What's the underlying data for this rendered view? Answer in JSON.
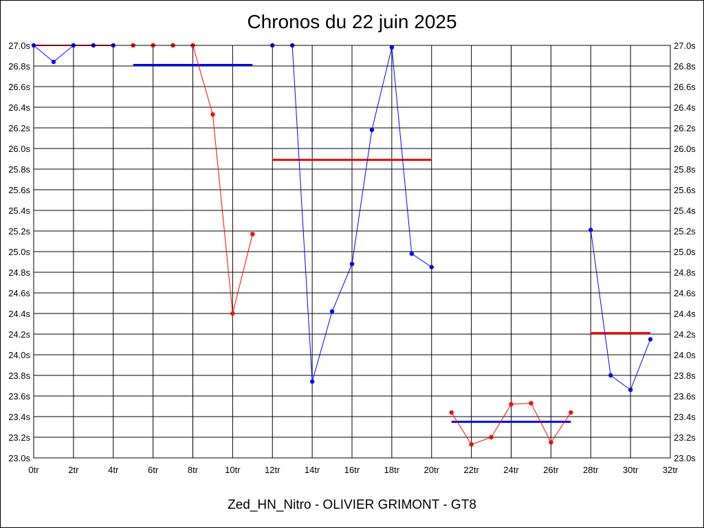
{
  "chart_data": {
    "type": "line",
    "title": "Chronos du 22 juin 2025",
    "subtitle": "Zed_HN_Nitro - OLIVIER GRIMONT - GT8",
    "xlim": [
      0,
      32
    ],
    "ylim": [
      23.0,
      27.0
    ],
    "x_ticks": [
      0,
      2,
      4,
      6,
      8,
      10,
      12,
      14,
      16,
      18,
      20,
      22,
      24,
      26,
      28,
      30,
      32
    ],
    "x_tick_labels": [
      "0tr",
      "2tr",
      "4tr",
      "6tr",
      "8tr",
      "10tr",
      "12tr",
      "14tr",
      "16tr",
      "18tr",
      "20tr",
      "22tr",
      "24tr",
      "26tr",
      "28tr",
      "30tr",
      "32tr"
    ],
    "y_ticks": [
      23.0,
      23.2,
      23.4,
      23.6,
      23.8,
      24.0,
      24.2,
      24.4,
      24.6,
      24.8,
      25.0,
      25.2,
      25.4,
      25.6,
      25.8,
      26.0,
      26.2,
      26.4,
      26.6,
      26.8,
      27.0
    ],
    "y_tick_labels": [
      "23.0s",
      "23.2s",
      "23.4s",
      "23.6s",
      "23.8s",
      "24.0s",
      "24.2s",
      "24.4s",
      "24.6s",
      "24.8s",
      "25.0s",
      "25.2s",
      "25.4s",
      "25.6s",
      "25.8s",
      "26.0s",
      "26.2s",
      "26.4s",
      "26.6s",
      "26.8s",
      "27.0s"
    ],
    "grid": true,
    "segments": [
      {
        "color": "#0000ff",
        "x": [
          0,
          1,
          2,
          3,
          4
        ],
        "y": [
          27.0,
          26.84,
          27.0,
          27.0,
          27.0
        ]
      },
      {
        "color": "#ff0000",
        "x": [
          0,
          1,
          2,
          3,
          4
        ],
        "y": [
          27.0,
          27.0,
          27.0,
          27.0,
          27.0
        ],
        "markers": false
      },
      {
        "color": "#ff0000",
        "x": [
          5,
          6,
          7,
          8,
          9,
          10,
          11
        ],
        "y": [
          27.0,
          27.0,
          27.0,
          27.0,
          26.33,
          24.4,
          25.17
        ]
      },
      {
        "color": "#0000ff",
        "x": [
          12,
          13,
          14,
          15,
          16,
          17,
          18,
          19,
          20
        ],
        "y": [
          27.0,
          27.0,
          23.74,
          24.42,
          24.88,
          26.18,
          26.98,
          24.98,
          24.85
        ]
      },
      {
        "color": "#ff0000",
        "x": [
          21,
          22,
          23,
          24,
          25,
          26,
          27
        ],
        "y": [
          23.44,
          23.13,
          23.2,
          23.52,
          23.53,
          23.15,
          23.44
        ]
      },
      {
        "color": "#0000ff",
        "x": [
          28,
          29,
          30,
          31
        ],
        "y": [
          25.21,
          23.8,
          23.66,
          24.15
        ]
      }
    ],
    "average_lines": [
      {
        "color": "#0000ff",
        "x_start": 5,
        "x_end": 11,
        "y": 26.81
      },
      {
        "color": "#ff0000",
        "x_start": 12,
        "x_end": 20,
        "y": 25.89
      },
      {
        "color": "#0000ff",
        "x_start": 21,
        "x_end": 27,
        "y": 23.35
      },
      {
        "color": "#ff0000",
        "x_start": 28,
        "x_end": 31,
        "y": 24.21
      }
    ]
  }
}
